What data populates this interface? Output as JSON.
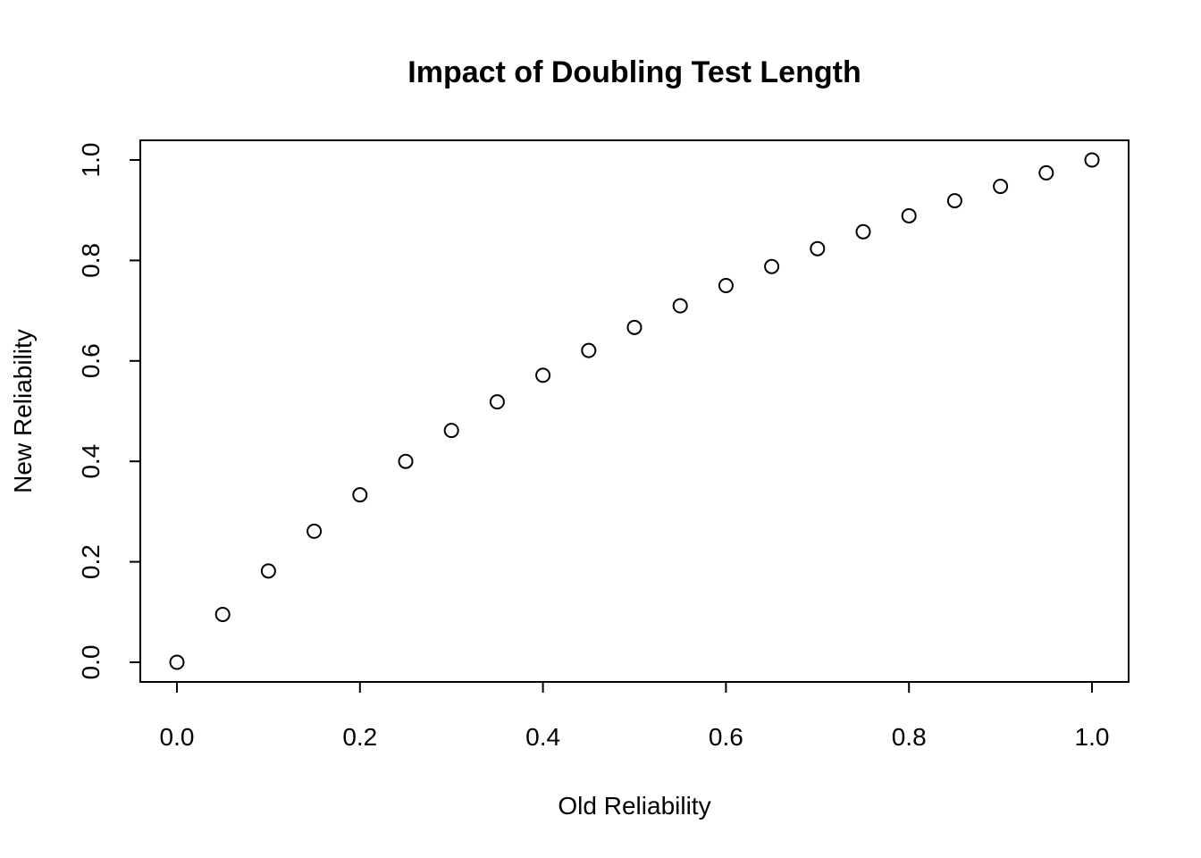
{
  "chart_data": {
    "type": "scatter",
    "title": "Impact of Doubling Test Length",
    "xlabel": "Old Reliability",
    "ylabel": "New Reliability",
    "xlim": [
      0,
      1
    ],
    "ylim": [
      0,
      1
    ],
    "grid": false,
    "x_ticks": [
      "0.0",
      "0.2",
      "0.4",
      "0.6",
      "0.8",
      "1.0"
    ],
    "y_ticks": [
      "0.0",
      "0.2",
      "0.4",
      "0.6",
      "0.8",
      "1.0"
    ],
    "x": [
      0,
      0.05,
      0.1,
      0.15,
      0.2,
      0.25,
      0.3,
      0.35,
      0.4,
      0.45,
      0.5,
      0.55,
      0.6,
      0.65,
      0.7,
      0.75,
      0.8,
      0.85,
      0.9,
      0.95,
      1.0
    ],
    "y": [
      0,
      0.0952,
      0.1818,
      0.2609,
      0.3333,
      0.4,
      0.4615,
      0.5185,
      0.5714,
      0.6207,
      0.6667,
      0.7097,
      0.75,
      0.7879,
      0.8235,
      0.8571,
      0.8889,
      0.9189,
      0.9474,
      0.9744,
      1.0
    ],
    "marker": "open-circle",
    "marker_color": "#000000"
  }
}
